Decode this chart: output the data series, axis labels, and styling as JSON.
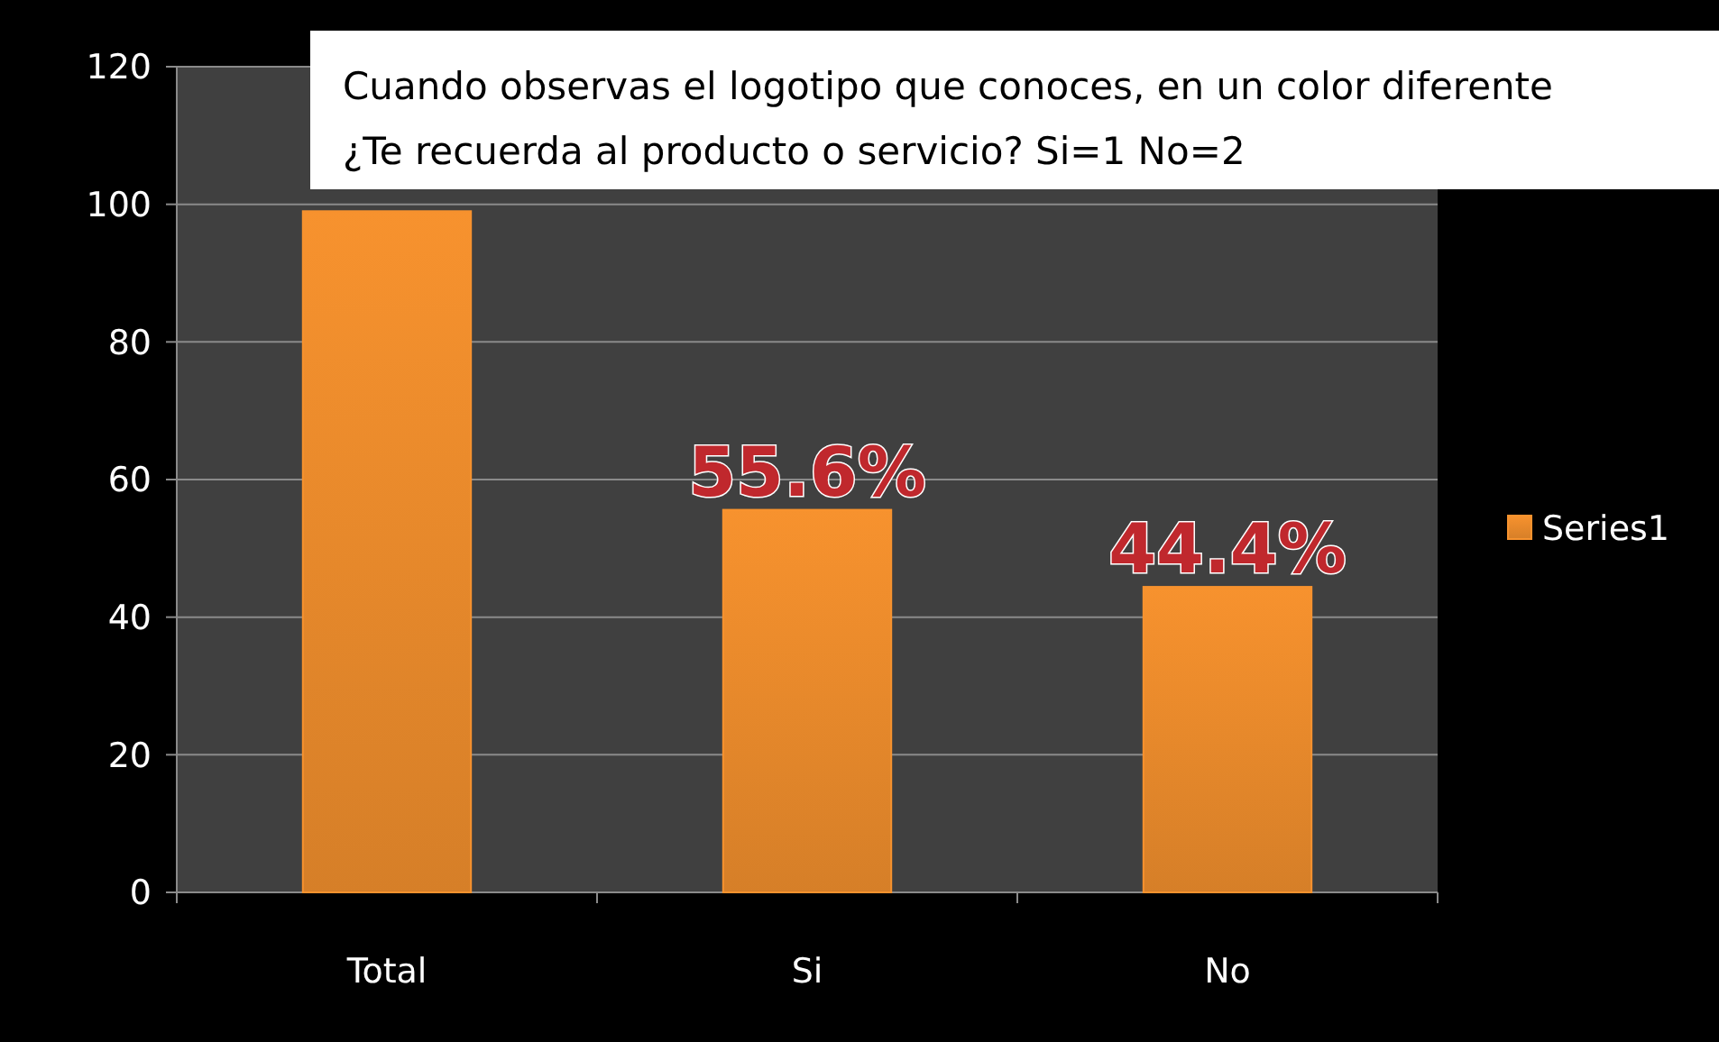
{
  "chart_data": {
    "type": "bar",
    "title": "Cuando observas el logotipo que conoces, en un color diferente\n¿Te recuerda al producto o servicio? Si=1 No=2",
    "categories": [
      "Total",
      "Si",
      "No"
    ],
    "series": [
      {
        "name": "Series1",
        "color": "#f7922e",
        "values": [
          99,
          55.6,
          44.4
        ],
        "value_labels": [
          null,
          "55.6%",
          "44.4%"
        ]
      }
    ],
    "ylim": [
      0,
      120
    ],
    "yticks": [
      0,
      20,
      40,
      60,
      80,
      100,
      120
    ],
    "grid": "y",
    "legend": "right"
  }
}
